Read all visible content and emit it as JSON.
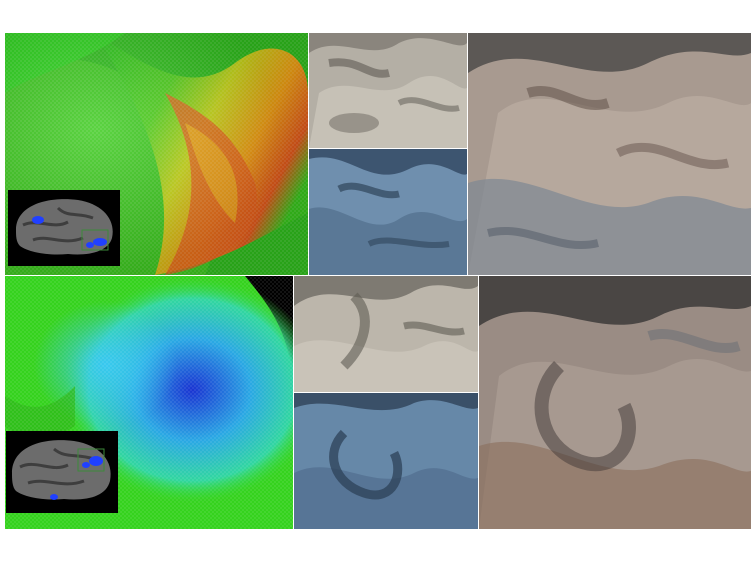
{
  "figure": {
    "panels": [
      {
        "id": "top-heat",
        "content": "wireframe-surface-heatmap",
        "colormap": [
          "#22c41a",
          "#b8d818",
          "#f0a010",
          "#e05010"
        ]
      },
      {
        "id": "top-grey",
        "content": "grey-cortical-surface"
      },
      {
        "id": "top-blue",
        "content": "blue-cortical-surface"
      },
      {
        "id": "top-overlay",
        "content": "overlaid-surfaces"
      },
      {
        "id": "bot-heat",
        "content": "wireframe-surface-heatmap",
        "colormap": [
          "#1a2fd0",
          "#28c8e8",
          "#30e020"
        ]
      },
      {
        "id": "bot-grey",
        "content": "grey-cortical-surface"
      },
      {
        "id": "bot-blue",
        "content": "blue-cortical-surface"
      },
      {
        "id": "bot-overlay",
        "content": "overlaid-surfaces"
      }
    ],
    "insets": [
      {
        "id": "inset-top",
        "content": "brain-lateral-view",
        "highlight_color": "#2040ff"
      },
      {
        "id": "inset-bot",
        "content": "brain-lateral-view",
        "highlight_color": "#2040ff"
      }
    ]
  }
}
